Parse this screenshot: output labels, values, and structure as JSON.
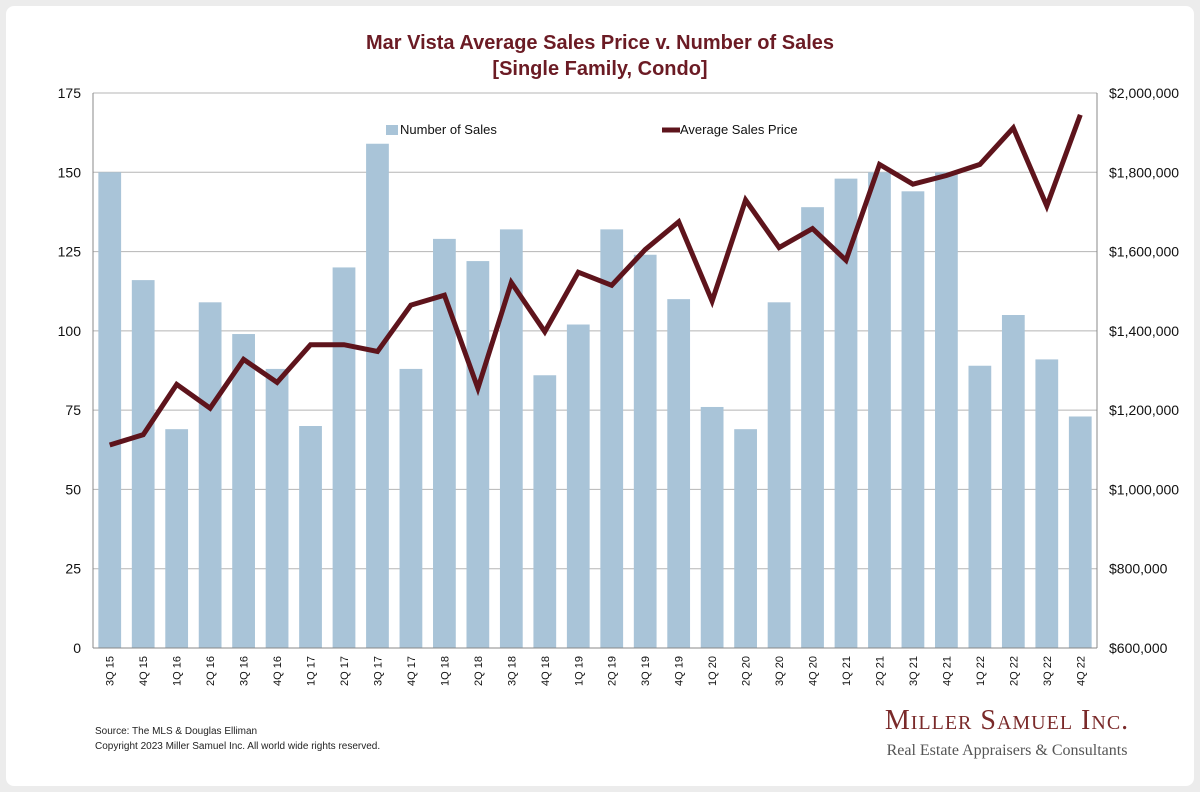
{
  "chart_data": {
    "type": "bar",
    "title": "Mar Vista Average Sales Price v. Number of Sales",
    "subtitle": "[Single Family, Condo]",
    "categories": [
      "3Q 15",
      "4Q 15",
      "1Q 16",
      "2Q 16",
      "3Q 16",
      "4Q 16",
      "1Q 17",
      "2Q 17",
      "3Q 17",
      "4Q 17",
      "1Q 18",
      "2Q 18",
      "3Q 18",
      "4Q 18",
      "1Q 19",
      "2Q 19",
      "3Q 19",
      "4Q 19",
      "1Q 20",
      "2Q 20",
      "3Q 20",
      "4Q 20",
      "1Q 21",
      "2Q 21",
      "3Q 21",
      "4Q 21",
      "1Q 22",
      "2Q 22",
      "3Q 22",
      "4Q 22"
    ],
    "series": [
      {
        "name": "Number of Sales",
        "type": "bar",
        "axis": "left",
        "color": "#a9c4d8",
        "values": [
          150,
          116,
          69,
          109,
          99,
          88,
          70,
          120,
          159,
          88,
          129,
          122,
          132,
          86,
          102,
          132,
          124,
          110,
          76,
          69,
          109,
          139,
          148,
          150,
          144,
          150,
          89,
          105,
          91,
          73
        ]
      },
      {
        "name": "Average Sales Price",
        "type": "line",
        "axis": "right",
        "color": "#5e141c",
        "values": [
          1112000,
          1138000,
          1265000,
          1205000,
          1328000,
          1270000,
          1365000,
          1365000,
          1348000,
          1465000,
          1490000,
          1255000,
          1522000,
          1398000,
          1548000,
          1515000,
          1605000,
          1675000,
          1475000,
          1730000,
          1610000,
          1658000,
          1578000,
          1820000,
          1770000,
          1792000,
          1820000,
          1912000,
          1715000,
          1945000
        ]
      }
    ],
    "y_left": {
      "min": 0,
      "max": 175,
      "ticks": [
        0,
        25,
        50,
        75,
        100,
        125,
        150,
        175
      ]
    },
    "y_right": {
      "min": 600000,
      "max": 2000000,
      "ticks": [
        "$600,000",
        "$800,000",
        "$1,000,000",
        "$1,200,000",
        "$1,400,000",
        "$1,600,000",
        "$1,800,000",
        "$2,000,000"
      ],
      "tick_values": [
        600000,
        800000,
        1000000,
        1200000,
        1400000,
        1600000,
        1800000,
        2000000
      ]
    },
    "grid": true,
    "legend_placement": "top"
  },
  "footer": {
    "source": "Source: The MLS & Douglas Elliman",
    "copyright": "Copyright 2023 Miller Samuel Inc.  All world wide rights reserved."
  },
  "logo": {
    "name": "Miller Samuel Inc.",
    "tagline": "Real Estate Appraisers & Consultants"
  },
  "colors": {
    "title": "#6b1b24",
    "bar": "#a9c4d8",
    "line": "#5e141c",
    "grid": "#b5b5b5"
  }
}
